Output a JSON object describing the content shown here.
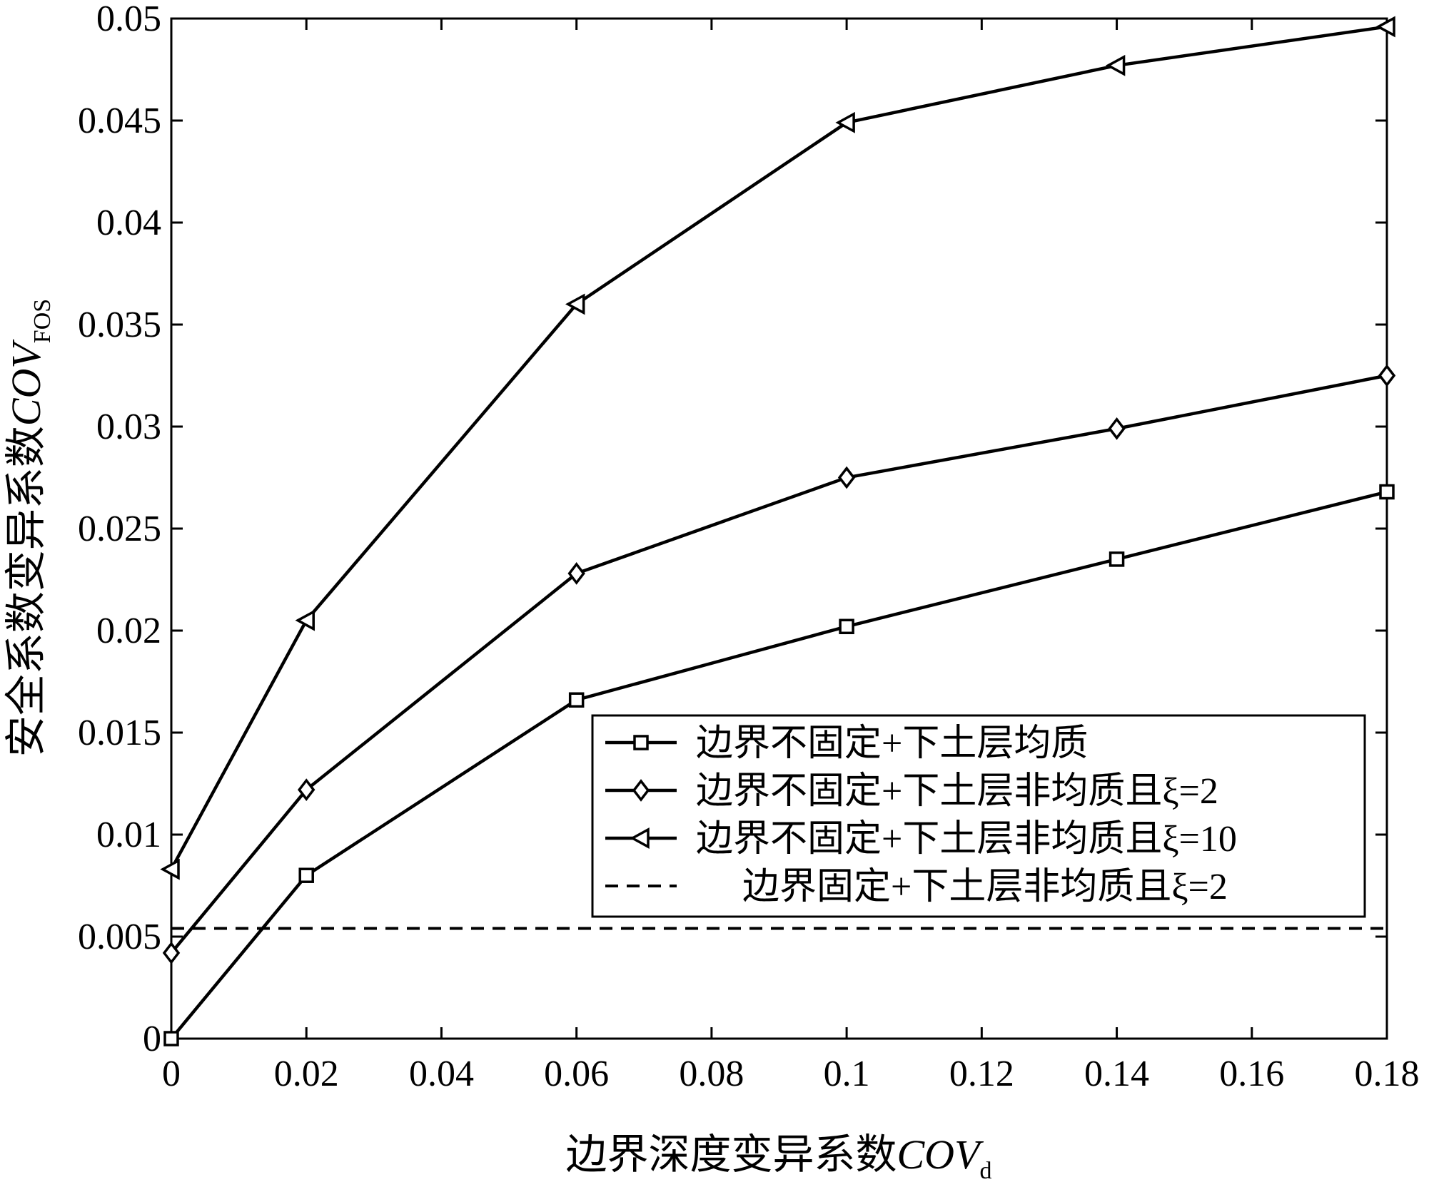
{
  "chart_data": {
    "type": "line",
    "title": "",
    "xlabel": "边界深度变异系数",
    "xlabel_var": "COV",
    "xlabel_sub": "d",
    "ylabel": "安全系数变异系数",
    "ylabel_var": "COV",
    "ylabel_sub": "FOS",
    "xlim": [
      0,
      0.18
    ],
    "ylim": [
      0,
      0.05
    ],
    "xticks": [
      0,
      0.02,
      0.04,
      0.06,
      0.08,
      0.1,
      0.12,
      0.14,
      0.16,
      0.18
    ],
    "xtick_labels": [
      "0",
      "0.02",
      "0.04",
      "0.06",
      "0.08",
      "0.1",
      "0.12",
      "0.14",
      "0.16",
      "0.18"
    ],
    "yticks": [
      0,
      0.005,
      0.01,
      0.015,
      0.02,
      0.025,
      0.03,
      0.035,
      0.04,
      0.045,
      0.05
    ],
    "ytick_labels": [
      "0",
      "0.005",
      "0.01",
      "0.015",
      "0.02",
      "0.025",
      "0.03",
      "0.035",
      "0.04",
      "0.045",
      "0.05"
    ],
    "grid": false,
    "legend_position": "lower-right",
    "x": [
      0,
      0.02,
      0.06,
      0.1,
      0.14,
      0.18
    ],
    "series": [
      {
        "name": "边界不固定+下土层均质",
        "marker": "square",
        "dashed": false,
        "values": [
          0.0,
          0.008,
          0.0166,
          0.0202,
          0.0235,
          0.0268
        ]
      },
      {
        "name": "边界不固定+下土层非均质且ξ=2",
        "marker": "diamond",
        "dashed": false,
        "values": [
          0.0042,
          0.0122,
          0.0228,
          0.0275,
          0.0299,
          0.0325
        ]
      },
      {
        "name": "边界不固定+下土层非均质且ξ=10",
        "marker": "triangle-left",
        "dashed": false,
        "values": [
          0.0083,
          0.0205,
          0.036,
          0.0449,
          0.0477,
          0.0496
        ]
      },
      {
        "name": "边界固定+下土层非均质且ξ=2",
        "marker": "none",
        "dashed": true,
        "values": [
          0.0054,
          0.0054,
          0.0054,
          0.0054,
          0.0054,
          0.0054
        ]
      }
    ]
  }
}
